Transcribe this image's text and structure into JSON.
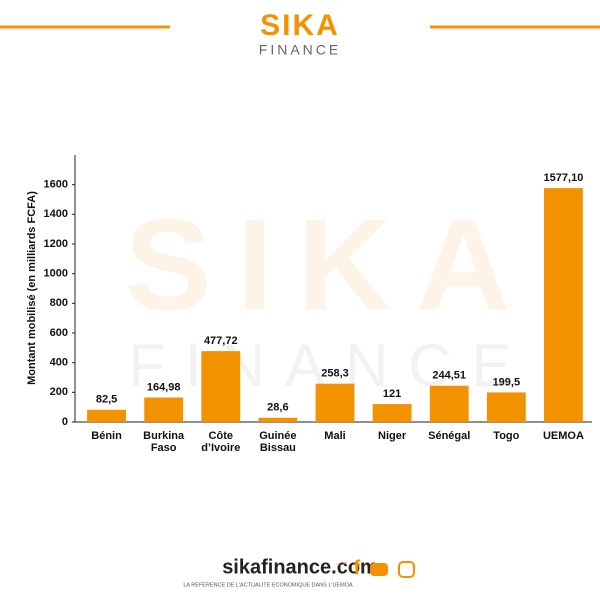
{
  "header": {
    "logo_top": "SIKA",
    "logo_bottom": "FINANCE"
  },
  "watermark": {
    "top": "SIKA",
    "bottom": "FINANCE"
  },
  "chart_data": {
    "type": "bar",
    "y_label": "Montant mobilisé (en milliards FCFA)",
    "categories": [
      "Bénin",
      "Burkina Faso",
      "Côte d’Ivoire",
      "Guinée Bissau",
      "Mali",
      "Niger",
      "Sénégal",
      "Togo",
      "UEMOA"
    ],
    "values": [
      82.5,
      164.98,
      477.72,
      28.6,
      258.3,
      121,
      244.51,
      199.5,
      1577.1
    ],
    "value_labels": [
      "82,5",
      "164,98",
      "477,72",
      "28,6",
      "258,3",
      "121",
      "244,51",
      "199,5",
      "1577,10"
    ],
    "color": "#f39200",
    "ylim": [
      0,
      1800
    ],
    "yticks": [
      0,
      200,
      400,
      600,
      800,
      1000,
      1200,
      1400,
      1600
    ],
    "grid": false
  },
  "footer": {
    "site": "sikafinance.com",
    "tagline": "LA REFERENCE DE L'ACTUALITE ECONOMIQUE DANS L'UEMOA"
  }
}
